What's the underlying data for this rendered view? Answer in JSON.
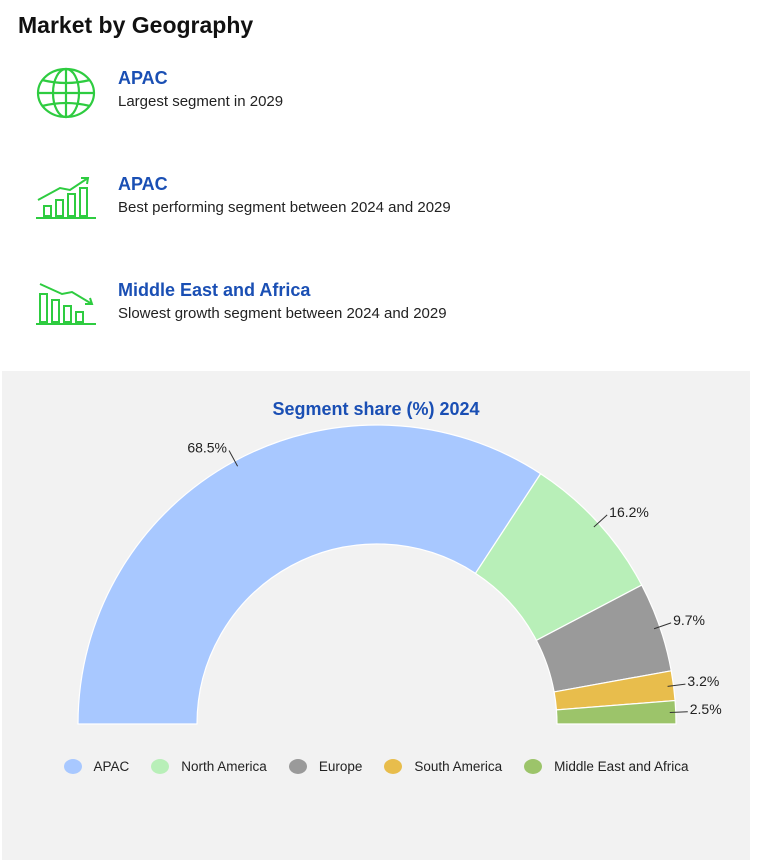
{
  "page": {
    "title": "Market by Geography"
  },
  "highlights": [
    {
      "icon": "globe-icon",
      "name": "APAC",
      "description": "Largest segment in 2029"
    },
    {
      "icon": "rising-bar-chart-icon",
      "name": "APAC",
      "description": "Best performing segment between 2024 and 2029"
    },
    {
      "icon": "declining-bar-chart-icon",
      "name": "Middle East and Africa",
      "description": "Slowest growth segment between 2024 and 2029"
    }
  ],
  "colors": {
    "accent": "#1a4fb4",
    "icon_green": "#2ecc40",
    "panel_bg": "#f2f2f2"
  },
  "chart_data": {
    "type": "pie",
    "variant": "semi-donut",
    "title": "Segment share (%) 2024",
    "categories": [
      "APAC",
      "North America",
      "Europe",
      "South America",
      "Middle East and Africa"
    ],
    "values": [
      68.5,
      16.2,
      9.7,
      3.2,
      2.5
    ],
    "labels": [
      "68.5%",
      "16.2%",
      "9.7%",
      "3.2%",
      "2.5%"
    ],
    "colors": [
      "#a8c8ff",
      "#b8efb8",
      "#9a9a9a",
      "#e8bd4c",
      "#9cc46a"
    ],
    "legend_position": "bottom"
  }
}
